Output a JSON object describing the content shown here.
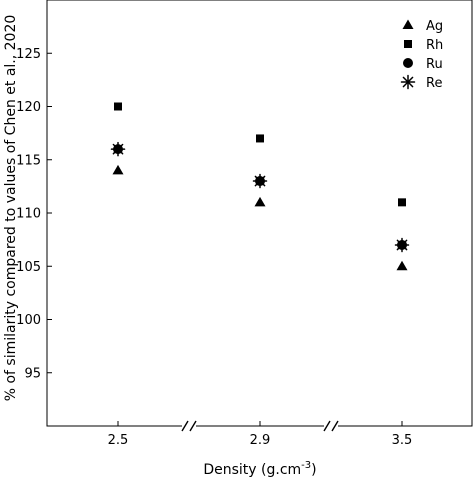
{
  "chart_data": {
    "type": "scatter",
    "title": "",
    "xlabel": "Density (g.cm",
    "xlabel_superscript": "-3",
    "xlabel_suffix": ")",
    "ylabel": "% of similarity compared to values of Chen et al., 2020",
    "categories": [
      "2.5",
      "2.9",
      "3.5"
    ],
    "x_axis_breaks": true,
    "ylim": [
      90,
      130
    ],
    "yticks": [
      95,
      100,
      105,
      110,
      115,
      120,
      125
    ],
    "grid": false,
    "legend_position": "top-right",
    "series": [
      {
        "name": "Ag",
        "marker": "triangle",
        "values": [
          114,
          111,
          105
        ]
      },
      {
        "name": "Rh",
        "marker": "square",
        "values": [
          120,
          117,
          111
        ]
      },
      {
        "name": "Ru",
        "marker": "circle",
        "values": [
          116,
          113,
          107
        ]
      },
      {
        "name": "Re",
        "marker": "asterisk",
        "values": [
          116,
          113,
          107
        ]
      }
    ]
  }
}
